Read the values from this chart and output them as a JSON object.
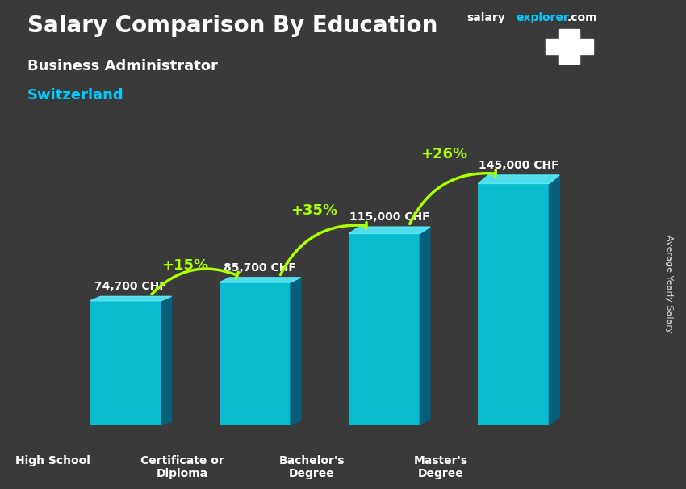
{
  "title_line1": "Salary Comparison By Education",
  "subtitle1": "Business Administrator",
  "subtitle2": "Switzerland",
  "ylabel": "Average Yearly Salary",
  "website": "salaryexplorer.com",
  "website_salary": "salary",
  "website_explorer": "explorer",
  "categories": [
    "High School",
    "Certificate or\nDiploma",
    "Bachelor's\nDegree",
    "Master's\nDegree"
  ],
  "values": [
    74700,
    85700,
    115000,
    145000
  ],
  "value_labels": [
    "74,700 CHF",
    "85,700 CHF",
    "115,000 CHF",
    "145,000 CHF"
  ],
  "pct_labels": [
    "+15%",
    "+35%",
    "+26%"
  ],
  "bar_color_top": "#00d4e8",
  "bar_color_mid": "#00aacc",
  "bar_color_bottom": "#0088aa",
  "bar_color_3d_side": "#006688",
  "background_color": "#3a3a3a",
  "title_color": "#ffffff",
  "subtitle1_color": "#ffffff",
  "subtitle2_color": "#00ccff",
  "label_color": "#ffffff",
  "pct_color": "#aaff00",
  "value_label_color": "#ffffff",
  "tick_color": "#ffffff",
  "ylim": [
    0,
    170000
  ],
  "bar_width": 0.55,
  "figsize": [
    8.5,
    6.06
  ],
  "dpi": 100
}
